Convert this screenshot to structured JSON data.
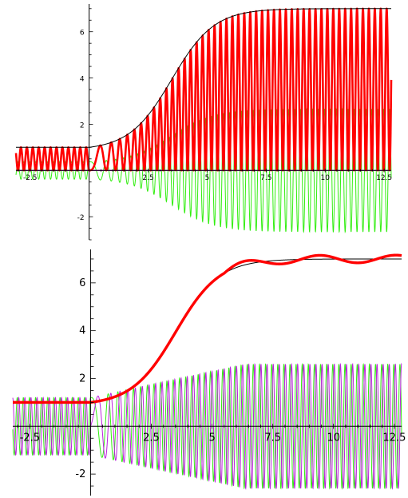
{
  "chart_data": [
    {
      "type": "line",
      "xlim": [
        -3.1,
        12.8
      ],
      "ylim": [
        -3.0,
        7.2
      ],
      "grid": false,
      "x_ticks": [
        -2.5,
        2.5,
        5,
        7.5,
        10,
        12.5
      ],
      "x_tick_labels": [
        "-2.5",
        "2.5",
        "5",
        "7.5",
        "10",
        "12.5"
      ],
      "y_ticks": [
        -2,
        2,
        4,
        6
      ],
      "y_tick_labels": [
        "-2",
        "2",
        "4",
        "6"
      ],
      "colors": {
        "envelope": "#000000",
        "modulus": "#ff0000",
        "real": "#33ee11",
        "imag": "#bb22dd"
      },
      "series": [
        {
          "role": "envelope",
          "color": "#000000",
          "description_free": true
        },
        {
          "role": "modulus",
          "color": "#ff0000"
        },
        {
          "role": "real",
          "color": "#33ee11"
        },
        {
          "role": "imag",
          "color": "#bb22dd"
        }
      ],
      "model": {
        "base": 1.0,
        "top": 7.0,
        "center": 3.5,
        "width": 0.9,
        "p0": 0.04,
        "p1": 0.5
      }
    },
    {
      "type": "line",
      "xlim": [
        -3.2,
        12.8
      ],
      "ylim": [
        -2.9,
        7.4
      ],
      "grid": false,
      "x_ticks": [
        -2.5,
        2.5,
        5,
        7.5,
        10,
        12.5
      ],
      "x_tick_labels": [
        "-2.5",
        "2.5",
        "5",
        "7.5",
        "10",
        "12.5"
      ],
      "y_ticks": [
        -2,
        2,
        4,
        6
      ],
      "y_tick_labels": [
        "-2",
        "2",
        "4",
        "6"
      ],
      "colors": {
        "envelope": "#000000",
        "modulus": "#ff0000",
        "real": "#33ee11",
        "imag": "#bb22dd"
      },
      "model": {
        "base": 1.0,
        "top": 7.0,
        "center": 3.5,
        "width": 0.9,
        "p0": 0.04,
        "p1": 0.5
      }
    }
  ]
}
